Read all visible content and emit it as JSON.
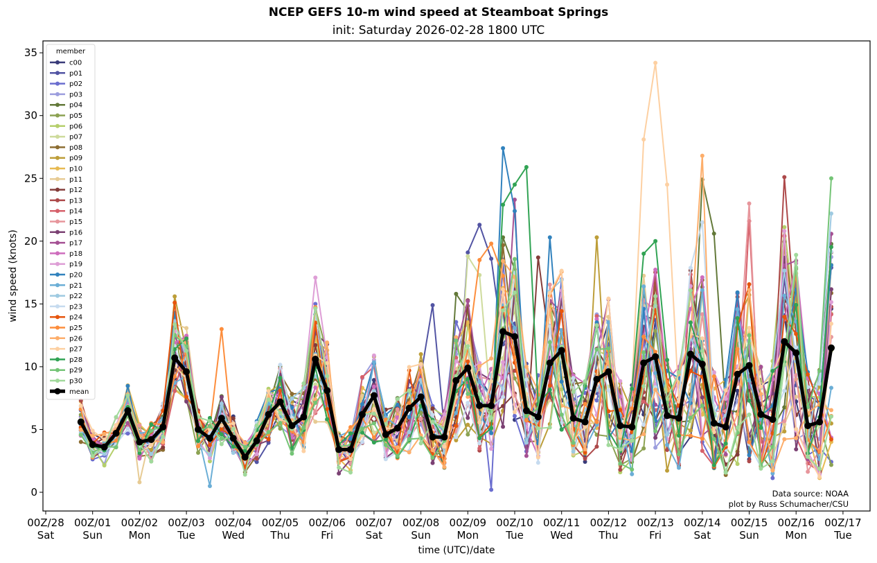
{
  "chart_data": {
    "type": "line",
    "title": "NCEP GEFS 10-m wind speed at Steamboat Springs",
    "subtitle": "init: Saturday 2026-02-28 1800 UTC",
    "xlabel": "time (UTC)/date",
    "ylabel": "wind speed (knots)",
    "ylim": [
      -1.4,
      36
    ],
    "yticks": [
      0,
      5,
      10,
      15,
      20,
      25,
      30,
      35
    ],
    "xlim_days": [
      -0.07,
      17.6
    ],
    "xticks": [
      {
        "day": 0,
        "line1": "00Z/28",
        "line2": "Sat"
      },
      {
        "day": 1,
        "line1": "00Z/01",
        "line2": "Sun"
      },
      {
        "day": 2,
        "line1": "00Z/02",
        "line2": "Mon"
      },
      {
        "day": 3,
        "line1": "00Z/03",
        "line2": "Tue"
      },
      {
        "day": 4,
        "line1": "00Z/04",
        "line2": "Wed"
      },
      {
        "day": 5,
        "line1": "00Z/05",
        "line2": "Thu"
      },
      {
        "day": 6,
        "line1": "00Z/06",
        "line2": "Fri"
      },
      {
        "day": 7,
        "line1": "00Z/07",
        "line2": "Sat"
      },
      {
        "day": 8,
        "line1": "00Z/08",
        "line2": "Sun"
      },
      {
        "day": 9,
        "line1": "00Z/09",
        "line2": "Mon"
      },
      {
        "day": 10,
        "line1": "00Z/10",
        "line2": "Tue"
      },
      {
        "day": 11,
        "line1": "00Z/11",
        "line2": "Wed"
      },
      {
        "day": 12,
        "line1": "00Z/12",
        "line2": "Thu"
      },
      {
        "day": 13,
        "line1": "00Z/13",
        "line2": "Fri"
      },
      {
        "day": 14,
        "line1": "00Z/14",
        "line2": "Sat"
      },
      {
        "day": 15,
        "line1": "00Z/15",
        "line2": "Sun"
      },
      {
        "day": 16,
        "line1": "00Z/16",
        "line2": "Mon"
      },
      {
        "day": 17,
        "line1": "00Z/17",
        "line2": "Tue"
      }
    ],
    "x_start_day": 0.75,
    "x_step_hours": 6,
    "legend_title": "member",
    "legend_location": "upper-left",
    "annotation": [
      "Data source: NOAA",
      "plot by Russ Schumacher/CSU"
    ],
    "mean": {
      "name": "mean",
      "color": "#000000",
      "values": [
        5.6,
        3.8,
        3.6,
        4.7,
        6.5,
        4.0,
        4.2,
        5.2,
        10.7,
        9.6,
        5.0,
        4.3,
        5.9,
        4.3,
        2.8,
        4.1,
        6.2,
        7.2,
        5.3,
        6.0,
        10.6,
        8.1,
        3.4,
        3.4,
        6.2,
        7.7,
        4.6,
        5.1,
        6.7,
        7.6,
        4.4,
        4.4,
        8.9,
        9.9,
        6.9,
        6.9,
        12.8,
        12.4,
        6.5,
        6.0,
        10.3,
        11.3,
        5.9,
        5.6,
        9.0,
        9.6,
        5.3,
        5.2,
        10.3,
        10.8,
        6.1,
        5.9,
        11.0,
        10.2,
        5.5,
        5.2,
        9.4,
        10.1,
        6.2,
        5.8,
        12.0,
        11.1,
        5.3,
        5.6,
        11.5
      ]
    },
    "series": [
      {
        "name": "c00",
        "color": "#393b79"
      },
      {
        "name": "p01",
        "color": "#5254a3",
        "peaks": {
          "30": 14.9,
          "33": 19.1,
          "34": 21.3,
          "35": 18.6
        }
      },
      {
        "name": "p02",
        "color": "#6b6ecf",
        "peaks": {
          "35": 0.2
        }
      },
      {
        "name": "p03",
        "color": "#9c9ede"
      },
      {
        "name": "p04",
        "color": "#637939",
        "peaks": {
          "32": 15.8,
          "53": 24.9,
          "54": 20.6
        }
      },
      {
        "name": "p05",
        "color": "#8ca252"
      },
      {
        "name": "p06",
        "color": "#b5cf6b"
      },
      {
        "name": "p07",
        "color": "#cedb9c",
        "peaks": {
          "33": 18.8,
          "34": 17.3
        }
      },
      {
        "name": "p08",
        "color": "#8c6d31",
        "peaks": {
          "14": 1.6
        }
      },
      {
        "name": "p09",
        "color": "#bd9e39",
        "peaks": {
          "8": 15.6,
          "44": 20.3
        }
      },
      {
        "name": "p10",
        "color": "#e7ba52"
      },
      {
        "name": "p11",
        "color": "#e7cb94",
        "peaks": {
          "5": 0.8
        }
      },
      {
        "name": "p12",
        "color": "#843c39",
        "peaks": {
          "39": 18.7
        }
      },
      {
        "name": "p13",
        "color": "#ad494a",
        "peaks": {
          "60": 25.1
        }
      },
      {
        "name": "p14",
        "color": "#d6616b",
        "peaks": {
          "57": 21.6
        }
      },
      {
        "name": "p15",
        "color": "#e7969c",
        "peaks": {
          "57": 23.0
        }
      },
      {
        "name": "p16",
        "color": "#7b4173"
      },
      {
        "name": "p17",
        "color": "#a55194",
        "peaks": {
          "37": 23.3
        }
      },
      {
        "name": "p18",
        "color": "#ce6dbd"
      },
      {
        "name": "p19",
        "color": "#de9ed6",
        "peaks": {
          "20": 17.1
        }
      },
      {
        "name": "p20",
        "color": "#3182bd",
        "peaks": {
          "36": 27.4,
          "37": 22.4,
          "40": 20.3
        }
      },
      {
        "name": "p21",
        "color": "#6baed6",
        "peaks": {
          "11": 0.5
        }
      },
      {
        "name": "p22",
        "color": "#9ecae1",
        "peaks": {
          "64": 22.2
        }
      },
      {
        "name": "p23",
        "color": "#c6dbef",
        "peaks": {
          "53": 21.5
        }
      },
      {
        "name": "p24",
        "color": "#e6550d",
        "peaks": {
          "8": 15.1
        }
      },
      {
        "name": "p25",
        "color": "#fd8d3c",
        "peaks": {
          "12": 13.0,
          "34": 18.5,
          "35": 19.8
        }
      },
      {
        "name": "p26",
        "color": "#fdae6b",
        "peaks": {
          "53": 26.8
        }
      },
      {
        "name": "p27",
        "color": "#fdd0a2",
        "peaks": {
          "48": 28.1,
          "49": 34.2,
          "50": 24.5
        }
      },
      {
        "name": "p28",
        "color": "#31a354",
        "peaks": {
          "36": 22.9,
          "37": 24.5,
          "38": 25.9,
          "48": 19.0,
          "49": 20.0
        }
      },
      {
        "name": "p29",
        "color": "#74c476",
        "peaks": {
          "64": 25.0
        }
      },
      {
        "name": "p30",
        "color": "#a1d99b"
      }
    ]
  }
}
